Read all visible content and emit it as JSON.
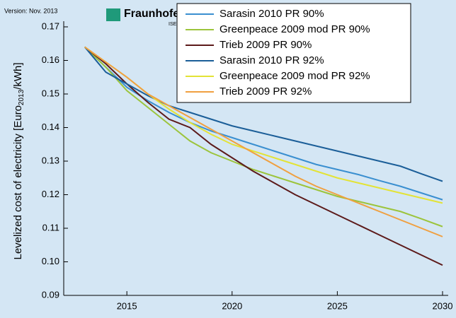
{
  "chart_data": {
    "type": "line",
    "version": "Version: Nov. 2013",
    "logo": "Fraunhofer",
    "logo_sub": "ISE",
    "y_label": {
      "text": "Levelized cost of electricity [Euro",
      "sub": "2013",
      "suffix": "/kWh]"
    },
    "x": [
      2013,
      2014,
      2015,
      2016,
      2017,
      2018,
      2019,
      2020,
      2021,
      2022,
      2023,
      2024,
      2025,
      2026,
      2027,
      2028,
      2029,
      2030
    ],
    "xlim": [
      2012,
      2030
    ],
    "xticks": [
      2015,
      2020,
      2025,
      2030
    ],
    "ylim": [
      0.09,
      0.17
    ],
    "yticks": [
      0.09,
      {
        "value": 0.1,
        "label": "0.10"
      },
      0.11,
      0.12,
      0.13,
      0.14,
      0.15,
      0.16,
      0.17
    ],
    "series": [
      {
        "name": "Sarasin 2010 PR 90%",
        "color": "#3a8fd0",
        "values": [
          0.164,
          0.158,
          0.152,
          0.148,
          0.1445,
          0.1415,
          0.139,
          0.137,
          0.135,
          0.133,
          0.131,
          0.129,
          0.1275,
          0.126,
          0.1242,
          0.1225,
          0.1205,
          0.1185
        ]
      },
      {
        "name": "Greenpeace 2009 mod PR 90%",
        "color": "#9cc43c",
        "values": [
          0.164,
          0.158,
          0.151,
          0.146,
          0.141,
          0.136,
          0.1325,
          0.13,
          0.1275,
          0.1255,
          0.1235,
          0.1215,
          0.1195,
          0.118,
          0.1165,
          0.115,
          0.1128,
          0.1105
        ]
      },
      {
        "name": "Trieb 2009 PR 90%",
        "color": "#5c1a1a",
        "values": [
          0.164,
          0.159,
          0.153,
          0.1475,
          0.1425,
          0.14,
          0.135,
          0.131,
          0.127,
          0.1235,
          0.12,
          0.117,
          0.114,
          0.111,
          0.108,
          0.105,
          0.102,
          0.099
        ]
      },
      {
        "name": "Sarasin 2010 PR 92%",
        "color": "#1b5e98",
        "values": [
          0.164,
          0.1565,
          0.153,
          0.1495,
          0.1465,
          0.1445,
          0.1425,
          0.1405,
          0.139,
          0.1375,
          0.136,
          0.1345,
          0.133,
          0.1315,
          0.13,
          0.1285,
          0.1262,
          0.124
        ]
      },
      {
        "name": "Greenpeace 2009 mod PR 92%",
        "color": "#e3e336",
        "values": [
          0.164,
          0.1595,
          0.155,
          0.15,
          0.1455,
          0.1415,
          0.138,
          0.135,
          0.133,
          0.131,
          0.129,
          0.127,
          0.125,
          0.1235,
          0.122,
          0.1205,
          0.119,
          0.1175
        ]
      },
      {
        "name": "Trieb 2009 PR 92%",
        "color": "#f0a040",
        "values": [
          0.164,
          0.1595,
          0.155,
          0.15,
          0.1465,
          0.143,
          0.1395,
          0.136,
          0.1325,
          0.129,
          0.1255,
          0.1225,
          0.12,
          0.1175,
          0.115,
          0.1125,
          0.11,
          0.1075
        ]
      }
    ]
  }
}
